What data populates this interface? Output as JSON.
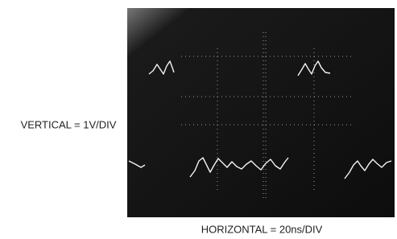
{
  "figure": {
    "vertical_label": "VERTICAL = 1V/DIV",
    "horizontal_label": "HORIZONTAL = 20ns/DIV"
  }
}
